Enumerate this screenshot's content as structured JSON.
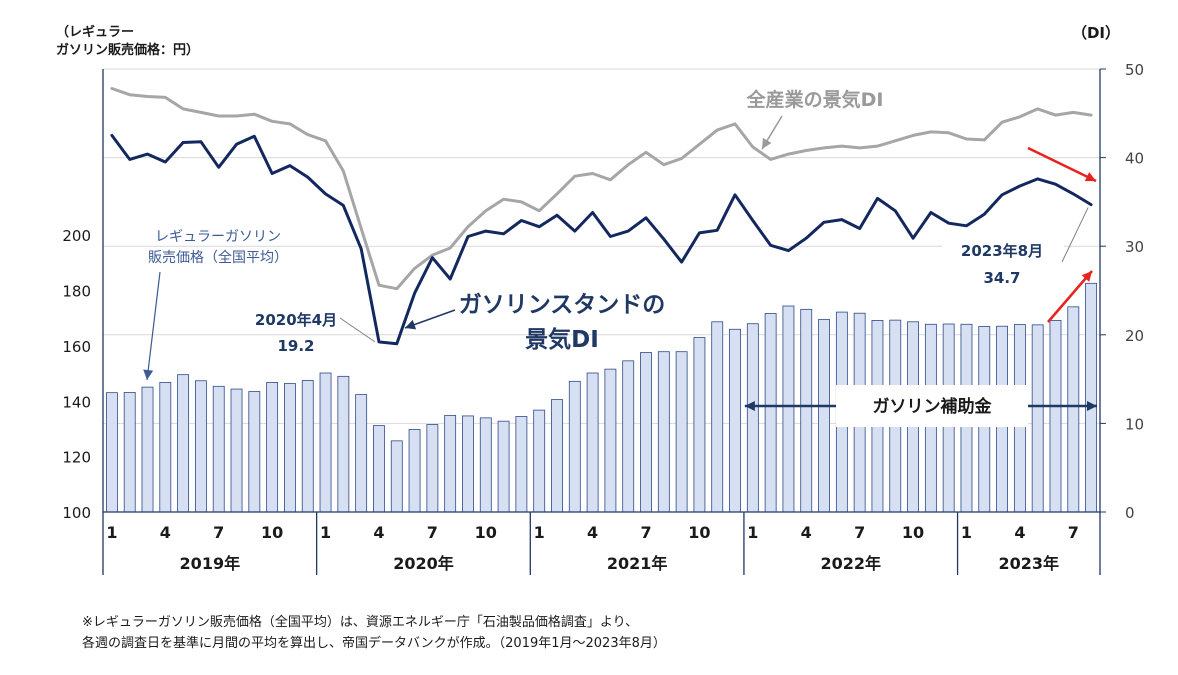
{
  "chart_data": {
    "type": "bar+line",
    "left_axis_label": [
      "（レギュラー",
      "ガソリン販売価格：円）"
    ],
    "right_axis_label": "（DI）",
    "left_ylim": [
      100,
      260
    ],
    "left_ticks": [
      100,
      120,
      140,
      160,
      180,
      200
    ],
    "right_ylim": [
      0,
      50
    ],
    "right_ticks": [
      0,
      10,
      20,
      30,
      40,
      50
    ],
    "month_ticks": [
      "1",
      "4",
      "7",
      "10"
    ],
    "years": [
      "2019年",
      "2020年",
      "2021年",
      "2022年",
      "2023年"
    ],
    "colors": {
      "bar_fill": "#d6e0f2",
      "bar_stroke": "#2f4a86",
      "gas_di": "#13285e",
      "all_di": "#a6a6a6",
      "axis": "#1f3864",
      "red": "#e8231e",
      "grid": "#d9d9d9"
    },
    "series": [
      {
        "name": "レギュラーガソリン販売価格（全国平均）",
        "type": "bar",
        "axis": "left",
        "values": [
          143.1,
          143.2,
          145.1,
          146.8,
          149.6,
          147.4,
          145.4,
          144.4,
          143.5,
          146.8,
          146.4,
          147.5,
          150.2,
          149.0,
          142.4,
          131.2,
          125.7,
          129.8,
          131.6,
          134.9,
          134.7,
          134.0,
          132.8,
          134.5,
          136.8,
          140.6,
          147.2,
          150.2,
          151.6,
          154.6,
          157.6,
          157.9,
          157.9,
          163.0,
          168.7,
          166.0,
          168.0,
          171.7,
          174.4,
          173.2,
          169.5,
          172.2,
          171.8,
          169.2,
          169.3,
          168.7,
          167.8,
          167.9,
          167.8,
          167.0,
          167.1,
          167.7,
          167.6,
          169.2,
          174.1,
          182.6
        ]
      },
      {
        "name": "ガソリンスタンドの景気DI",
        "type": "line",
        "axis": "right",
        "values": [
          42.5,
          39.8,
          40.4,
          39.5,
          41.7,
          41.8,
          38.9,
          41.5,
          42.4,
          38.2,
          39.1,
          37.8,
          35.9,
          34.6,
          29.7,
          19.2,
          19.0,
          24.7,
          28.7,
          26.3,
          31.1,
          31.7,
          31.4,
          32.9,
          32.2,
          33.5,
          31.7,
          33.8,
          31.1,
          31.7,
          33.2,
          30.8,
          28.2,
          31.5,
          31.8,
          35.8,
          32.9,
          30.1,
          29.5,
          30.9,
          32.7,
          33.0,
          32.0,
          35.4,
          34.0,
          30.9,
          33.8,
          32.6,
          32.3,
          33.6,
          35.8,
          36.8,
          37.6,
          37.0,
          35.9,
          34.7
        ]
      },
      {
        "name": "全産業の景気DI",
        "type": "line",
        "axis": "right",
        "values": [
          47.8,
          47.1,
          46.9,
          46.8,
          45.5,
          45.1,
          44.7,
          44.7,
          44.9,
          44.1,
          43.8,
          42.6,
          41.9,
          38.5,
          32.0,
          25.6,
          25.2,
          27.5,
          29.0,
          29.8,
          32.2,
          34.0,
          35.3,
          35.0,
          34.0,
          35.9,
          37.9,
          38.2,
          37.5,
          39.2,
          40.6,
          39.2,
          39.9,
          41.5,
          43.1,
          43.8,
          41.2,
          39.8,
          40.4,
          40.8,
          41.1,
          41.3,
          41.1,
          41.3,
          41.9,
          42.5,
          42.9,
          42.8,
          42.1,
          42.0,
          44.0,
          44.6,
          45.5,
          44.8,
          45.1,
          44.8
        ]
      }
    ],
    "annotations": {
      "gas_price_label": [
        "レギュラーガソリン",
        "販売価格（全国平均）"
      ],
      "gas_di_label": [
        "ガソリンスタンドの",
        "景気DI"
      ],
      "all_di_label": "全産業の景気DI",
      "low_point": [
        "2020年4月",
        "19.2"
      ],
      "latest_point": [
        "2023年8月",
        "34.7"
      ],
      "subsidy": "ガソリン補助金"
    }
  },
  "footnote": [
    "※レギュラーガソリン販売価格（全国平均）は、資源エネルギー庁「石油製品価格調査」より、",
    "各週の調査日を基準に月間の平均を算出し、帝国データバンクが作成。（2019年1月～2023年8月）"
  ]
}
